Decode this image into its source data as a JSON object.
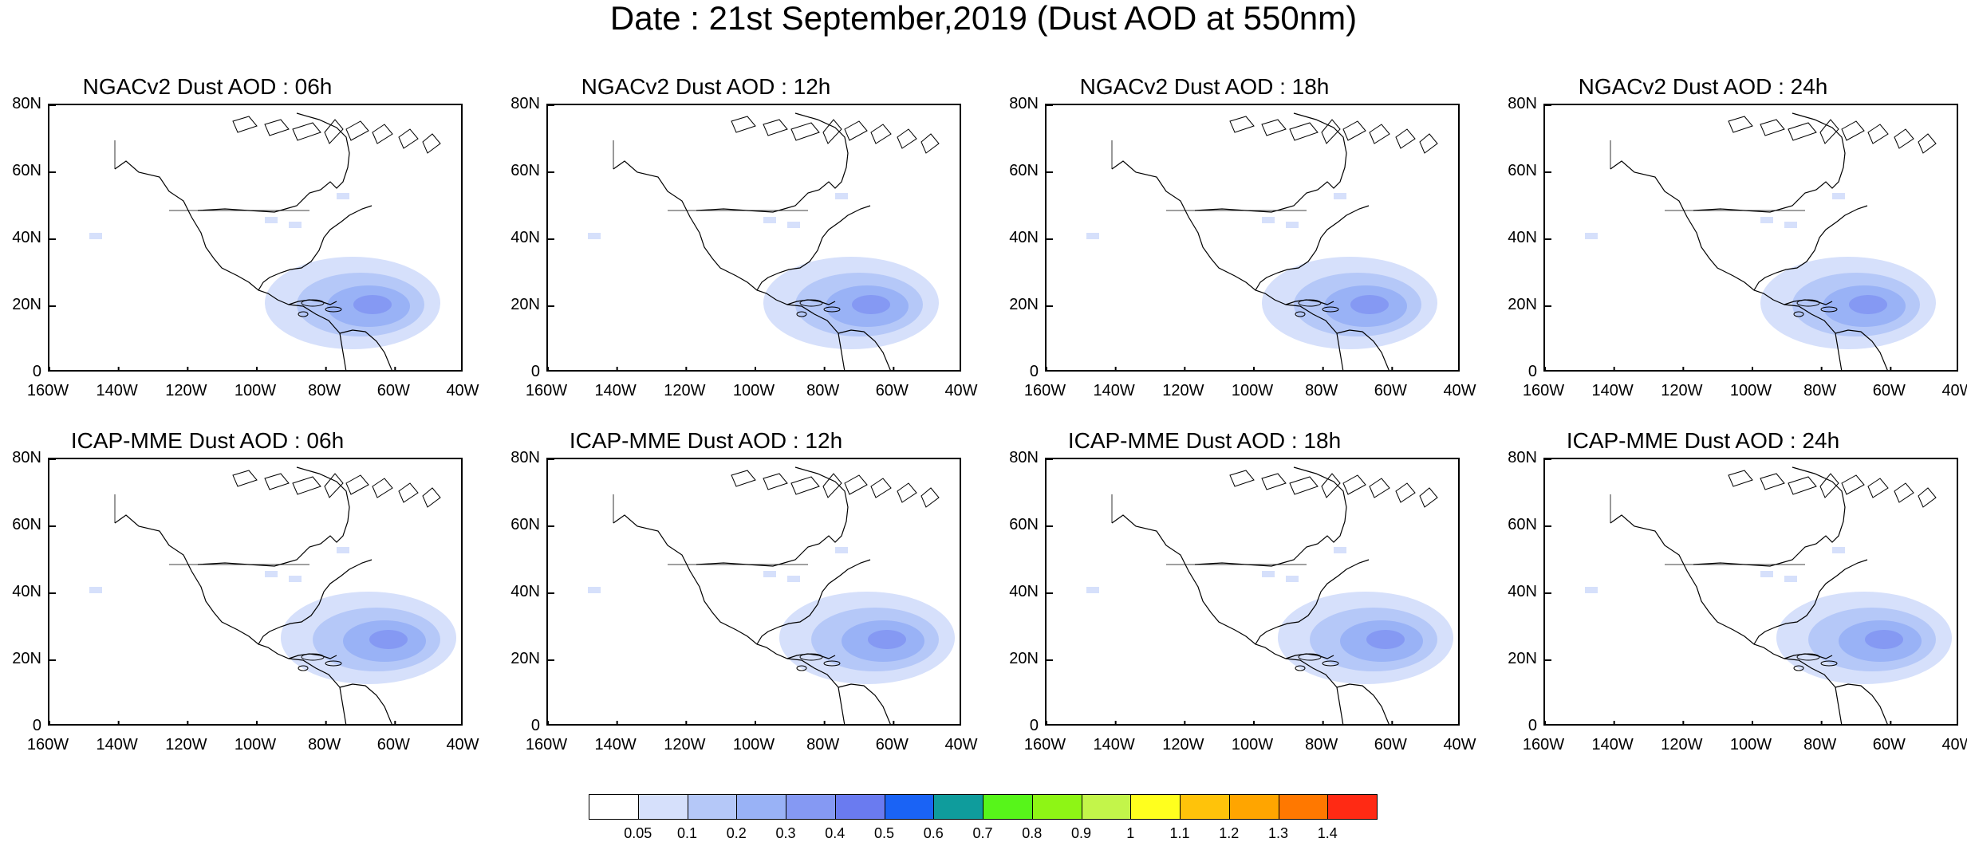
{
  "title": "Date : 21st September,2019 (Dust AOD at 550nm)",
  "lat_labels": [
    "80N",
    "60N",
    "40N",
    "20N",
    "0"
  ],
  "lon_labels": [
    "160W",
    "140W",
    "120W",
    "100W",
    "80W",
    "60W",
    "40W"
  ],
  "panels": [
    {
      "title": "NGACv2 Dust AOD : 06h",
      "model": "NGACv2",
      "hour": "06h"
    },
    {
      "title": "NGACv2 Dust AOD : 12h",
      "model": "NGACv2",
      "hour": "12h"
    },
    {
      "title": "NGACv2 Dust AOD : 18h",
      "model": "NGACv2",
      "hour": "18h"
    },
    {
      "title": "NGACv2 Dust AOD : 24h",
      "model": "NGACv2",
      "hour": "24h"
    },
    {
      "title": "ICAP-MME Dust AOD : 06h",
      "model": "ICAP-MME",
      "hour": "06h"
    },
    {
      "title": "ICAP-MME Dust AOD : 12h",
      "model": "ICAP-MME",
      "hour": "12h"
    },
    {
      "title": "ICAP-MME Dust AOD : 18h",
      "model": "ICAP-MME",
      "hour": "18h"
    },
    {
      "title": "ICAP-MME Dust AOD : 24h",
      "model": "ICAP-MME",
      "hour": "24h"
    }
  ],
  "colorbar": {
    "labels": [
      "0.05",
      "0.1",
      "0.2",
      "0.3",
      "0.4",
      "0.5",
      "0.6",
      "0.7",
      "0.8",
      "0.9",
      "1",
      "1.1",
      "1.2",
      "1.3",
      "1.4"
    ],
    "colors": [
      "#ffffff",
      "#d6e0fb",
      "#b5c8f8",
      "#99b2f6",
      "#8599f3",
      "#6a7bf0",
      "#1a63f5",
      "#0f9c9c",
      "#57f51a",
      "#8ef515",
      "#c3f54a",
      "#ffff1e",
      "#ffc30a",
      "#ffa500",
      "#ff7800",
      "#ff2a14"
    ]
  }
}
